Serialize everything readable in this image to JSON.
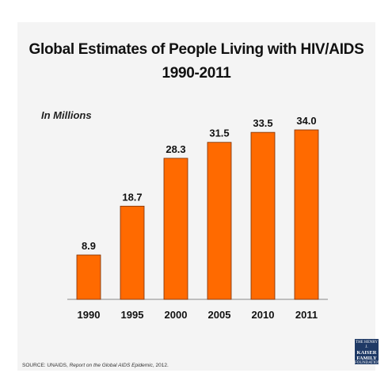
{
  "chart_data": {
    "type": "bar",
    "title": "Global Estimates of People Living with HIV/AIDS",
    "subtitle": "1990-2011",
    "unit_label": "In Millions",
    "categories": [
      "1990",
      "1995",
      "2000",
      "2005",
      "2010",
      "2011"
    ],
    "values": [
      8.9,
      18.7,
      28.3,
      31.5,
      33.5,
      34.0
    ],
    "value_labels": [
      "8.9",
      "18.7",
      "28.3",
      "31.5",
      "33.5",
      "34.0"
    ],
    "ylim": [
      0,
      34.0
    ],
    "grid": false,
    "legend": "none",
    "bar_color": "#ff6a00",
    "bar_edge_color": "#7a2e00"
  },
  "footer": {
    "source_prefix": "SOURCE: UNAIDS,",
    "source_title": "Report on the Global AIDS Epidemic",
    "source_suffix": ", 2012."
  },
  "logo": {
    "line1": "THE HENRY J.",
    "line2": "KAISER",
    "line3": "FAMILY",
    "line4": "FOUNDATION"
  }
}
